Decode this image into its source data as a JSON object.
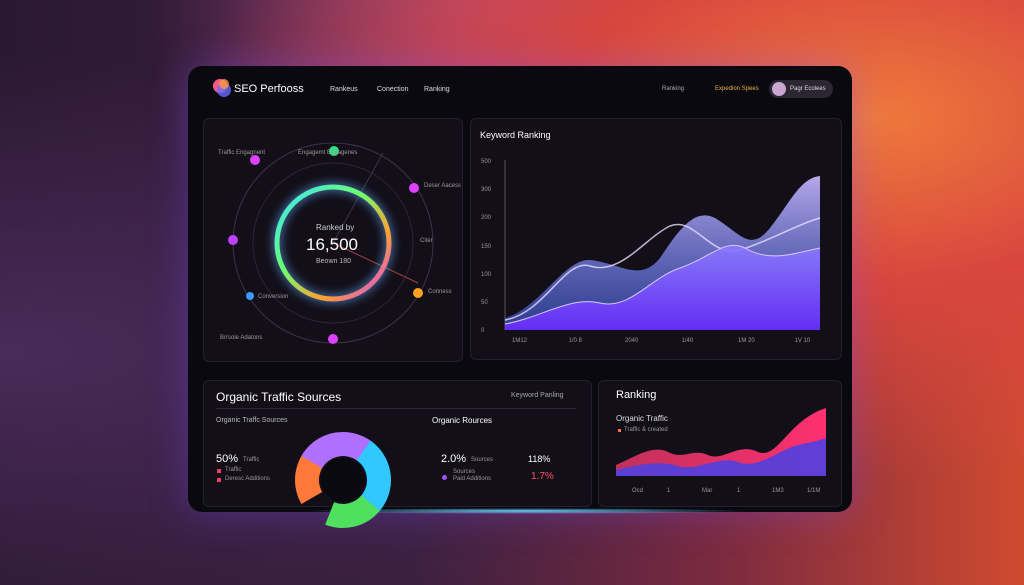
{
  "header": {
    "brand": "SEO Perfooss",
    "nav": [
      "Rankeus",
      "Conection",
      "Ranking"
    ],
    "right_links": [
      "Ranking",
      "Expedion Spees"
    ],
    "user": "Pagr Ecolees"
  },
  "gauge": {
    "labels": [
      "Traffic Engagnent",
      "Engagemt Engagenes",
      "Deser Aacess",
      "Citer",
      "Conness",
      "Conversion",
      "Brrsole Adatons"
    ],
    "caption": "Ranked by",
    "value": "16,500",
    "sub": "Beown 180"
  },
  "keyword_chart": {
    "title": "Keyword Ranking",
    "yticks": [
      "500",
      "300",
      "200",
      "150",
      "100",
      "50",
      "0"
    ],
    "xticks": [
      "1M12",
      "1/0 8",
      "2040",
      "1/40",
      "1M 20",
      "1V 10"
    ]
  },
  "traffic_sources": {
    "title": "Organic Traffic Sources",
    "link": "Keyword Panling",
    "subtitle": "Organic Traffc Sources",
    "stat": "50%",
    "stat_note": "Traffic",
    "legend": [
      "Traffic",
      "Deresc Additions"
    ],
    "col_title": "Organic Rources",
    "col_stat": "2.0%",
    "col_stat_note": "Sources",
    "col_legend": [
      "Sources",
      "Paid Additions"
    ],
    "right_stat": "118%",
    "right_stat2": "1.7%"
  },
  "ranking": {
    "title": "Ranking",
    "subtitle": "Organic Traffic",
    "legend": "Traffic & created",
    "xticks": [
      "Ocd",
      "1",
      "Mar",
      "1",
      "1M3",
      "1/1M"
    ]
  }
}
